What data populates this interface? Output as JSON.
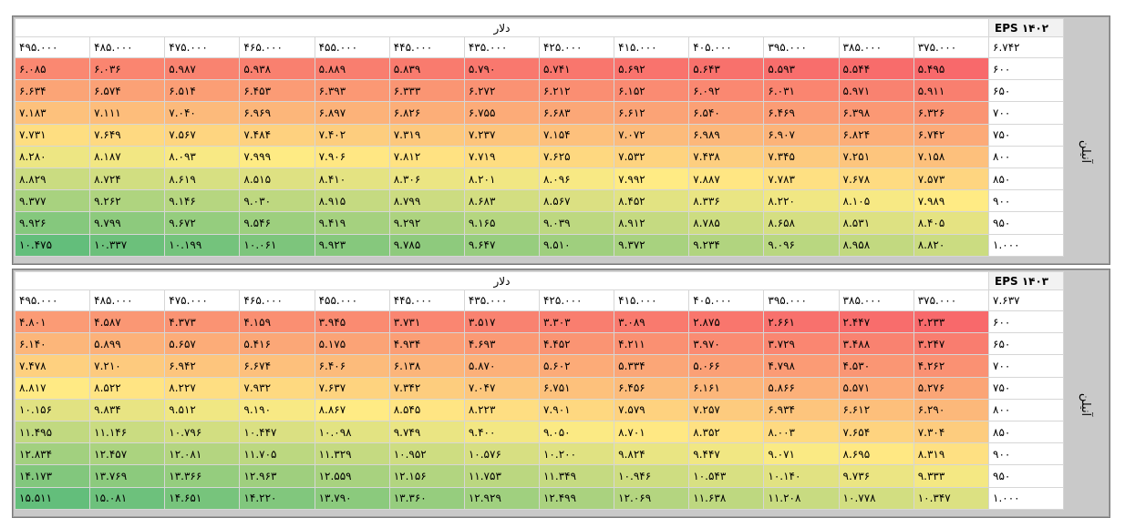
{
  "panels": [
    {
      "label": "EPS ۱۴۰۲",
      "currency_label": "دلار",
      "side_label": "آنیلن",
      "corner_value": "۶.۷۴۲",
      "columns": [
        "۳۷۵.۰۰۰",
        "۳۸۵.۰۰۰",
        "۳۹۵.۰۰۰",
        "۴۰۵.۰۰۰",
        "۴۱۵.۰۰۰",
        "۴۲۵.۰۰۰",
        "۴۳۵.۰۰۰",
        "۴۴۵.۰۰۰",
        "۴۵۵.۰۰۰",
        "۴۶۵.۰۰۰",
        "۴۷۵.۰۰۰",
        "۴۸۵.۰۰۰",
        "۴۹۵.۰۰۰"
      ],
      "rows": [
        {
          "label": "۶۰۰",
          "values": [
            "۵.۴۹۵",
            "۵.۵۴۴",
            "۵.۵۹۳",
            "۵.۶۴۳",
            "۵.۶۹۲",
            "۵.۷۴۱",
            "۵.۷۹۰",
            "۵.۸۳۹",
            "۵.۸۸۹",
            "۵.۹۳۸",
            "۵.۹۸۷",
            "۶.۰۳۶",
            "۶.۰۸۵"
          ]
        },
        {
          "label": "۶۵۰",
          "values": [
            "۵.۹۱۱",
            "۵.۹۷۱",
            "۶.۰۳۱",
            "۶.۰۹۲",
            "۶.۱۵۲",
            "۶.۲۱۲",
            "۶.۲۷۲",
            "۶.۳۳۳",
            "۶.۳۹۳",
            "۶.۴۵۳",
            "۶.۵۱۴",
            "۶.۵۷۴",
            "۶.۶۳۴"
          ]
        },
        {
          "label": "۷۰۰",
          "values": [
            "۶.۳۲۶",
            "۶.۳۹۸",
            "۶.۴۶۹",
            "۶.۵۴۰",
            "۶.۶۱۲",
            "۶.۶۸۳",
            "۶.۷۵۵",
            "۶.۸۲۶",
            "۶.۸۹۷",
            "۶.۹۶۹",
            "۷.۰۴۰",
            "۷.۱۱۱",
            "۷.۱۸۳"
          ]
        },
        {
          "label": "۷۵۰",
          "values": [
            "۶.۷۴۲",
            "۶.۸۲۴",
            "۶.۹۰۷",
            "۶.۹۸۹",
            "۷.۰۷۲",
            "۷.۱۵۴",
            "۷.۲۳۷",
            "۷.۳۱۹",
            "۷.۴۰۲",
            "۷.۴۸۴",
            "۷.۵۶۷",
            "۷.۶۴۹",
            "۷.۷۳۱"
          ]
        },
        {
          "label": "۸۰۰",
          "values": [
            "۷.۱۵۸",
            "۷.۲۵۱",
            "۷.۳۴۵",
            "۷.۴۳۸",
            "۷.۵۳۲",
            "۷.۶۲۵",
            "۷.۷۱۹",
            "۷.۸۱۲",
            "۷.۹۰۶",
            "۷.۹۹۹",
            "۸.۰۹۳",
            "۸.۱۸۷",
            "۸.۲۸۰"
          ]
        },
        {
          "label": "۸۵۰",
          "values": [
            "۷.۵۷۳",
            "۷.۶۷۸",
            "۷.۷۸۳",
            "۷.۸۸۷",
            "۷.۹۹۲",
            "۸.۰۹۶",
            "۸.۲۰۱",
            "۸.۳۰۶",
            "۸.۴۱۰",
            "۸.۵۱۵",
            "۸.۶۱۹",
            "۸.۷۲۴",
            "۸.۸۲۹"
          ]
        },
        {
          "label": "۹۰۰",
          "values": [
            "۷.۹۸۹",
            "۸.۱۰۵",
            "۸.۲۲۰",
            "۸.۳۳۶",
            "۸.۴۵۲",
            "۸.۵۶۷",
            "۸.۶۸۳",
            "۸.۷۹۹",
            "۸.۹۱۵",
            "۹.۰۳۰",
            "۹.۱۴۶",
            "۹.۲۶۲",
            "۹.۳۷۷"
          ]
        },
        {
          "label": "۹۵۰",
          "values": [
            "۸.۴۰۵",
            "۸.۵۳۱",
            "۸.۶۵۸",
            "۸.۷۸۵",
            "۸.۹۱۲",
            "۹.۰۳۹",
            "۹.۱۶۵",
            "۹.۲۹۲",
            "۹.۴۱۹",
            "۹.۵۴۶",
            "۹.۶۷۲",
            "۹.۷۹۹",
            "۹.۹۲۶"
          ]
        },
        {
          "label": "۱.۰۰۰",
          "values": [
            "۸.۸۲۰",
            "۸.۹۵۸",
            "۹.۰۹۶",
            "۹.۲۳۴",
            "۹.۳۷۲",
            "۹.۵۱۰",
            "۹.۶۴۷",
            "۹.۷۸۵",
            "۹.۹۲۳",
            "۱۰.۰۶۱",
            "۱۰.۱۹۹",
            "۱۰.۳۳۷",
            "۱۰.۴۷۵"
          ]
        }
      ]
    },
    {
      "label": "EPS ۱۴۰۳",
      "currency_label": "دلار",
      "side_label": "آنیلن",
      "corner_value": "۷.۶۳۷",
      "columns": [
        "۳۷۵.۰۰۰",
        "۳۸۵.۰۰۰",
        "۳۹۵.۰۰۰",
        "۴۰۵.۰۰۰",
        "۴۱۵.۰۰۰",
        "۴۲۵.۰۰۰",
        "۴۳۵.۰۰۰",
        "۴۴۵.۰۰۰",
        "۴۵۵.۰۰۰",
        "۴۶۵.۰۰۰",
        "۴۷۵.۰۰۰",
        "۴۸۵.۰۰۰",
        "۴۹۵.۰۰۰"
      ],
      "rows": [
        {
          "label": "۶۰۰",
          "values": [
            "۲.۲۳۳",
            "۲.۴۴۷",
            "۲.۶۶۱",
            "۲.۸۷۵",
            "۳.۰۸۹",
            "۳.۳۰۳",
            "۳.۵۱۷",
            "۳.۷۳۱",
            "۳.۹۴۵",
            "۴.۱۵۹",
            "۴.۳۷۳",
            "۴.۵۸۷",
            "۴.۸۰۱"
          ]
        },
        {
          "label": "۶۵۰",
          "values": [
            "۳.۲۴۷",
            "۳.۴۸۸",
            "۳.۷۲۹",
            "۳.۹۷۰",
            "۴.۲۱۱",
            "۴.۴۵۲",
            "۴.۶۹۳",
            "۴.۹۳۴",
            "۵.۱۷۵",
            "۵.۴۱۶",
            "۵.۶۵۷",
            "۵.۸۹۹",
            "۶.۱۴۰"
          ]
        },
        {
          "label": "۷۰۰",
          "values": [
            "۴.۲۶۲",
            "۴.۵۳۰",
            "۴.۷۹۸",
            "۵.۰۶۶",
            "۵.۳۳۴",
            "۵.۶۰۲",
            "۵.۸۷۰",
            "۶.۱۳۸",
            "۶.۴۰۶",
            "۶.۶۷۴",
            "۶.۹۴۲",
            "۷.۲۱۰",
            "۷.۴۷۸"
          ]
        },
        {
          "label": "۷۵۰",
          "values": [
            "۵.۲۷۶",
            "۵.۵۷۱",
            "۵.۸۶۶",
            "۶.۱۶۱",
            "۶.۴۵۶",
            "۶.۷۵۱",
            "۷.۰۴۷",
            "۷.۳۴۲",
            "۷.۶۳۷",
            "۷.۹۳۲",
            "۸.۲۲۷",
            "۸.۵۲۲",
            "۸.۸۱۷"
          ]
        },
        {
          "label": "۸۰۰",
          "values": [
            "۶.۲۹۰",
            "۶.۶۱۲",
            "۶.۹۳۴",
            "۷.۲۵۷",
            "۷.۵۷۹",
            "۷.۹۰۱",
            "۸.۲۲۳",
            "۸.۵۴۵",
            "۸.۸۶۷",
            "۹.۱۹۰",
            "۹.۵۱۲",
            "۹.۸۳۴",
            "۱۰.۱۵۶"
          ]
        },
        {
          "label": "۸۵۰",
          "values": [
            "۷.۳۰۴",
            "۷.۶۵۴",
            "۸.۰۰۳",
            "۸.۳۵۲",
            "۸.۷۰۱",
            "۹.۰۵۰",
            "۹.۴۰۰",
            "۹.۷۴۹",
            "۱۰.۰۹۸",
            "۱۰.۴۴۷",
            "۱۰.۷۹۶",
            "۱۱.۱۴۶",
            "۱۱.۴۹۵"
          ]
        },
        {
          "label": "۹۰۰",
          "values": [
            "۸.۳۱۹",
            "۸.۶۹۵",
            "۹.۰۷۱",
            "۹.۴۴۷",
            "۹.۸۲۴",
            "۱۰.۲۰۰",
            "۱۰.۵۷۶",
            "۱۰.۹۵۲",
            "۱۱.۳۲۹",
            "۱۱.۷۰۵",
            "۱۲.۰۸۱",
            "۱۲.۴۵۷",
            "۱۲.۸۳۴"
          ]
        },
        {
          "label": "۹۵۰",
          "values": [
            "۹.۳۳۳",
            "۹.۷۳۶",
            "۱۰.۱۴۰",
            "۱۰.۵۴۳",
            "۱۰.۹۴۶",
            "۱۱.۳۴۹",
            "۱۱.۷۵۳",
            "۱۲.۱۵۶",
            "۱۲.۵۵۹",
            "۱۲.۹۶۳",
            "۱۳.۳۶۶",
            "۱۳.۷۶۹",
            "۱۴.۱۷۳"
          ]
        },
        {
          "label": "۱.۰۰۰",
          "values": [
            "۱۰.۳۴۷",
            "۱۰.۷۷۸",
            "۱۱.۲۰۸",
            "۱۱.۶۳۸",
            "۱۲.۰۶۹",
            "۱۲.۴۹۹",
            "۱۲.۹۲۹",
            "۱۳.۳۶۰",
            "۱۳.۷۹۰",
            "۱۴.۲۲۰",
            "۱۴.۶۵۱",
            "۱۵.۰۸۱",
            "۱۵.۵۱۱"
          ]
        }
      ]
    }
  ]
}
